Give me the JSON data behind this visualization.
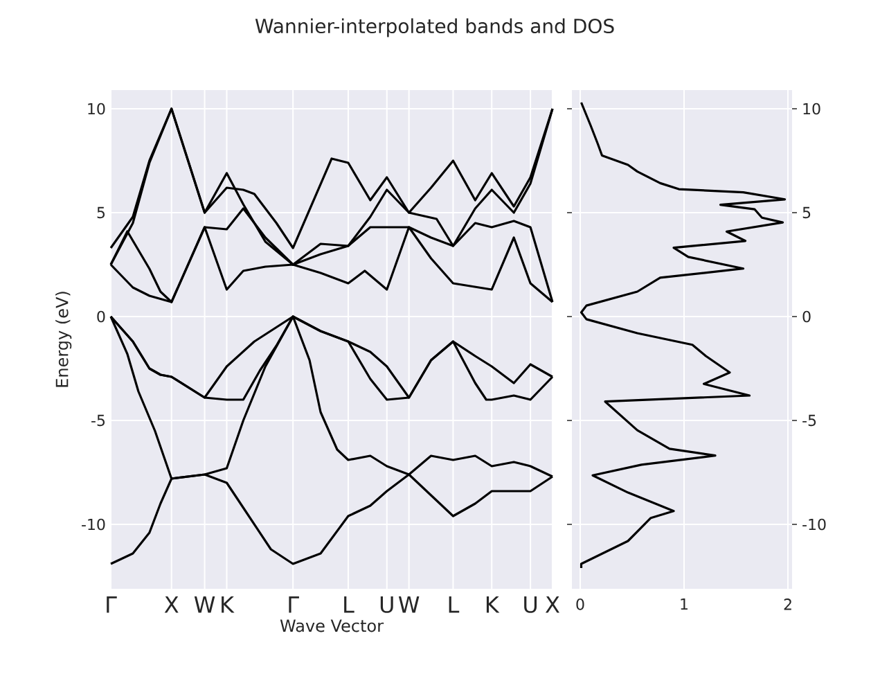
{
  "chart_data": [
    {
      "type": "line",
      "title": "Wannier-interpolated bands and DOS",
      "xlabel": "Wave Vector",
      "ylabel": "Energy (eV)",
      "grid": true,
      "categories": [
        "Γ",
        null,
        null,
        null,
        null,
        null,
        null,
        null,
        null,
        null,
        null,
        "X",
        null,
        null,
        null,
        null,
        null,
        "W",
        null,
        null,
        null,
        "K",
        null,
        null,
        null,
        null,
        null,
        null,
        null,
        null,
        null,
        null,
        null,
        "Γ",
        null,
        null,
        null,
        null,
        null,
        null,
        null,
        null,
        null,
        "L",
        null,
        null,
        null,
        null,
        null,
        null,
        "U",
        null,
        null,
        null,
        "W",
        null,
        null,
        null,
        null,
        null,
        null,
        null,
        "L",
        null,
        null,
        null,
        null,
        null,
        null,
        "K",
        null,
        null,
        null,
        null,
        null,
        null,
        "U",
        null,
        null,
        null,
        "X"
      ],
      "ylim": [
        -13.1,
        10.9
      ],
      "yticks": [
        -10,
        -5,
        0,
        5,
        10
      ],
      "series": [
        {
          "color": "#000000",
          "values": [
            -11.9,
            null,
            null,
            null,
            -11.4,
            null,
            null,
            -10.4,
            null,
            -9.0,
            null,
            -7.8,
            null,
            null,
            null,
            null,
            null,
            -7.6,
            null,
            null,
            null,
            -8.0,
            null,
            null,
            -9.2,
            null,
            null,
            null,
            null,
            -11.2,
            null,
            null,
            null,
            -11.9,
            null,
            null,
            null,
            null,
            -11.4,
            null,
            null,
            null,
            null,
            -9.6,
            null,
            null,
            null,
            -9.1,
            null,
            null,
            -8.4,
            null,
            null,
            null,
            -7.6,
            null,
            null,
            null,
            -8.6,
            null,
            null,
            null,
            -9.6,
            null,
            null,
            null,
            -9.0,
            null,
            null,
            -8.4,
            null,
            null,
            null,
            null,
            null,
            null,
            -8.4,
            null,
            null,
            null,
            -7.7
          ]
        },
        {
          "color": "#000000",
          "values": [
            0,
            null,
            null,
            -1.8,
            null,
            -3.6,
            null,
            null,
            -5.5,
            null,
            null,
            -7.8,
            null,
            null,
            null,
            null,
            null,
            -7.6,
            null,
            null,
            null,
            -7.3,
            null,
            null,
            -5.0,
            null,
            null,
            null,
            -2.4,
            null,
            null,
            null,
            null,
            0,
            null,
            null,
            -2.1,
            null,
            -4.6,
            null,
            null,
            -6.4,
            null,
            -6.9,
            null,
            null,
            null,
            -6.7,
            null,
            null,
            -7.2,
            null,
            null,
            null,
            -7.6,
            null,
            null,
            null,
            -6.7,
            null,
            null,
            null,
            -6.9,
            null,
            null,
            null,
            -6.7,
            null,
            null,
            -7.2,
            null,
            null,
            null,
            -7.0,
            null,
            null,
            -7.2,
            null,
            null,
            null,
            -7.7
          ]
        },
        {
          "color": "#000000",
          "values": [
            0,
            null,
            null,
            null,
            -1.2,
            null,
            null,
            -2.5,
            null,
            -2.8,
            null,
            -2.9,
            null,
            null,
            null,
            null,
            null,
            -3.9,
            null,
            null,
            null,
            -4.0,
            null,
            null,
            -4.0,
            null,
            null,
            -2.6,
            null,
            null,
            -1.4,
            null,
            null,
            0,
            null,
            null,
            null,
            null,
            -0.7,
            null,
            null,
            null,
            null,
            -1.2,
            null,
            null,
            null,
            -3.0,
            null,
            null,
            -4.0,
            null,
            null,
            null,
            -3.9,
            null,
            null,
            null,
            -2.1,
            null,
            null,
            null,
            -1.2,
            null,
            null,
            null,
            -3.2,
            null,
            -4.0,
            -4.0,
            null,
            null,
            null,
            -3.8,
            null,
            null,
            -4.0,
            null,
            null,
            null,
            -2.9
          ]
        },
        {
          "color": "#000000",
          "values": [
            0,
            null,
            null,
            null,
            -1.2,
            null,
            null,
            -2.5,
            null,
            -2.8,
            null,
            -2.9,
            null,
            null,
            null,
            null,
            null,
            -3.9,
            null,
            null,
            null,
            -2.4,
            null,
            null,
            null,
            null,
            -1.2,
            null,
            null,
            null,
            null,
            null,
            null,
            0,
            null,
            null,
            null,
            null,
            -0.7,
            null,
            null,
            null,
            null,
            -1.2,
            null,
            null,
            null,
            -1.7,
            null,
            null,
            -2.4,
            null,
            null,
            null,
            -3.9,
            null,
            null,
            null,
            -2.1,
            null,
            null,
            null,
            -1.2,
            null,
            null,
            null,
            -1.9,
            null,
            null,
            -2.4,
            null,
            null,
            null,
            -3.2,
            null,
            null,
            -2.3,
            null,
            null,
            null,
            -2.9
          ]
        },
        {
          "color": "#000000",
          "values": [
            2.5,
            null,
            null,
            null,
            1.4,
            null,
            null,
            1.0,
            null,
            null,
            null,
            0.7,
            null,
            null,
            null,
            null,
            null,
            4.3,
            null,
            null,
            null,
            1.3,
            null,
            null,
            2.2,
            null,
            null,
            null,
            2.4,
            null,
            null,
            null,
            null,
            2.5,
            null,
            null,
            null,
            null,
            2.1,
            null,
            null,
            null,
            null,
            1.6,
            null,
            null,
            2.2,
            null,
            null,
            null,
            1.3,
            null,
            null,
            null,
            4.3,
            null,
            null,
            null,
            2.8,
            null,
            null,
            null,
            1.6,
            null,
            null,
            null,
            null,
            null,
            null,
            1.3,
            null,
            null,
            null,
            3.8,
            null,
            null,
            1.6,
            null,
            null,
            null,
            0.7
          ]
        },
        {
          "color": "#000000",
          "values": [
            2.5,
            null,
            null,
            4.1,
            null,
            null,
            null,
            2.3,
            null,
            1.2,
            null,
            0.7,
            null,
            null,
            null,
            null,
            null,
            4.3,
            null,
            null,
            null,
            4.2,
            null,
            null,
            5.2,
            null,
            null,
            null,
            3.8,
            null,
            null,
            null,
            null,
            2.5,
            null,
            null,
            null,
            null,
            3.0,
            null,
            null,
            null,
            null,
            3.4,
            null,
            null,
            null,
            4.3,
            null,
            null,
            4.3,
            null,
            null,
            null,
            4.3,
            null,
            null,
            null,
            3.8,
            null,
            null,
            null,
            3.4,
            null,
            null,
            null,
            4.5,
            null,
            null,
            4.3,
            null,
            null,
            null,
            4.6,
            null,
            null,
            4.3,
            null,
            null,
            null,
            0.7
          ]
        },
        {
          "color": "#000000",
          "values": [
            2.5,
            null,
            null,
            null,
            4.5,
            null,
            null,
            7.4,
            null,
            null,
            null,
            10.0,
            null,
            null,
            null,
            null,
            null,
            5.0,
            null,
            null,
            null,
            6.9,
            null,
            null,
            5.4,
            null,
            null,
            null,
            3.6,
            null,
            null,
            null,
            null,
            2.5,
            null,
            null,
            null,
            null,
            3.5,
            null,
            null,
            null,
            null,
            3.4,
            null,
            null,
            null,
            4.8,
            null,
            null,
            6.1,
            null,
            null,
            null,
            5.0,
            null,
            null,
            null,
            null,
            4.7,
            null,
            null,
            3.4,
            null,
            null,
            null,
            5.2,
            null,
            null,
            6.1,
            null,
            null,
            null,
            5.0,
            null,
            null,
            6.4,
            null,
            null,
            null,
            10.0
          ]
        },
        {
          "color": "#000000",
          "values": [
            3.3,
            null,
            null,
            null,
            4.8,
            null,
            null,
            7.5,
            null,
            null,
            null,
            10.0,
            null,
            null,
            null,
            null,
            null,
            5.0,
            null,
            null,
            null,
            6.2,
            null,
            null,
            6.1,
            null,
            5.9,
            null,
            null,
            null,
            4.5,
            null,
            null,
            3.3,
            null,
            null,
            null,
            null,
            null,
            null,
            7.6,
            null,
            null,
            7.4,
            null,
            null,
            null,
            5.6,
            null,
            null,
            6.7,
            null,
            null,
            null,
            5.0,
            null,
            null,
            null,
            6.2,
            null,
            null,
            null,
            7.5,
            null,
            null,
            null,
            5.6,
            null,
            null,
            6.9,
            null,
            null,
            null,
            5.3,
            null,
            null,
            6.7,
            null,
            null,
            null,
            10.0
          ]
        }
      ]
    },
    {
      "type": "line",
      "grid": true,
      "xlim": [
        -0.08,
        2.04
      ],
      "ylim": [
        -13.1,
        10.9
      ],
      "xticks": [
        0,
        1,
        2
      ],
      "yticks": [
        -10,
        -5,
        0,
        5,
        10
      ],
      "series": [
        {
          "color": "#000000",
          "x": [
            0.01,
            0.1,
            0.17,
            0.21,
            0.46,
            0.55,
            0.77,
            0.95,
            1.57,
            1.97,
            1.35,
            1.68,
            1.75,
            1.95,
            1.41,
            1.59,
            0.9,
            1.04,
            1.57,
            0.77,
            0.55,
            0.06,
            0.01,
            0.06,
            0.55,
            1.08,
            1.21,
            1.44,
            1.19,
            1.63,
            0.24,
            0.55,
            0.86,
            1.3,
            0.59,
            0.12,
            0.46,
            0.9,
            0.68,
            0.46,
            0.01,
            0.01
          ],
          "values": [
            10.3,
            9.2,
            8.3,
            7.75,
            7.3,
            6.98,
            6.42,
            6.13,
            5.98,
            5.64,
            5.38,
            5.16,
            4.76,
            4.53,
            4.09,
            3.64,
            3.31,
            2.87,
            2.31,
            1.87,
            1.2,
            0.53,
            0.2,
            -0.13,
            -0.8,
            -1.36,
            -1.9,
            -2.69,
            -3.24,
            -3.8,
            -4.09,
            -5.47,
            -6.36,
            -6.69,
            -7.13,
            -7.64,
            -8.47,
            -9.36,
            -9.69,
            -10.8,
            -11.9,
            -12.1
          ]
        }
      ]
    }
  ]
}
